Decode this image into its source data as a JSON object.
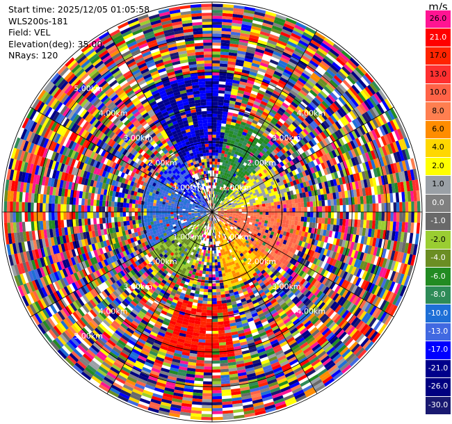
{
  "header": {
    "start_time": "Start time: 2025/12/05 01:05:58",
    "station": "WLS200s-181",
    "field": "Field: VEL",
    "elevation": "Elevation(deg): 35.00",
    "nrays": "NRays: 120"
  },
  "colorbar": {
    "unit": "m/s",
    "ticks": [
      "26.0",
      "21.0",
      "17.0",
      "13.0",
      "10.0",
      "8.0",
      "6.0",
      "4.0",
      "2.0",
      "1.0",
      "0.0",
      "-1.0",
      "-2.0",
      "-4.0",
      "-6.0",
      "-8.0",
      "-10.0",
      "-13.0",
      "-17.0",
      "-21.0",
      "-26.0",
      "-30.0"
    ],
    "colors": [
      "#ff1493",
      "#ff0000",
      "#ff2400",
      "#ff3030",
      "#ff6347",
      "#ff7f50",
      "#ff8c00",
      "#ffd700",
      "#ffff00",
      "#9aa0a6",
      "#808080",
      "#696969",
      "#9acd32",
      "#6b8e23",
      "#228b22",
      "#2e8b57",
      "#1e6fd6",
      "#4169e1",
      "#0000ff",
      "#00008b",
      "#000080",
      "#191970"
    ]
  },
  "chart_data": {
    "type": "heatmap",
    "projection": "polar PPI",
    "field": "VEL",
    "unit": "m/s",
    "nrays": 120,
    "ray_step_deg": 3,
    "max_range_km": 6.0,
    "range_ring_labels": [
      {
        "label": "1.00km",
        "azimuth_deg": 225
      },
      {
        "label": "1.00km",
        "azimuth_deg": 135
      },
      {
        "label": "1.00km",
        "azimuth_deg": 315
      },
      {
        "label": "1.00km",
        "azimuth_deg": 45
      },
      {
        "label": "2.00km",
        "azimuth_deg": 225
      },
      {
        "label": "2.00km",
        "azimuth_deg": 135
      },
      {
        "label": "2.00km",
        "azimuth_deg": 315
      },
      {
        "label": "2.00km",
        "azimuth_deg": 45
      },
      {
        "label": "3.00km",
        "azimuth_deg": 225
      },
      {
        "label": "3.00km",
        "azimuth_deg": 135
      },
      {
        "label": "3.00km",
        "azimuth_deg": 315
      },
      {
        "label": "3.00km",
        "azimuth_deg": 45
      },
      {
        "label": "4.00km",
        "azimuth_deg": 225
      },
      {
        "label": "4.00km",
        "azimuth_deg": 135
      },
      {
        "label": "4.00km",
        "azimuth_deg": 315
      },
      {
        "label": "4.00km",
        "azimuth_deg": 45
      },
      {
        "label": "5.00km",
        "azimuth_deg": 225
      },
      {
        "label": "5.00km",
        "azimuth_deg": 315
      }
    ],
    "velocity_sectors": [
      {
        "azimuth_from": 330,
        "azimuth_to": 10,
        "range_km": [
          1.6,
          4.0
        ],
        "velocity": -17.0
      },
      {
        "azimuth_from": 10,
        "azimuth_to": 45,
        "range_km": [
          0.2,
          2.6
        ],
        "velocity": -6.0
      },
      {
        "azimuth_from": 45,
        "azimuth_to": 80,
        "range_km": [
          0.2,
          2.2
        ],
        "velocity": 2.0
      },
      {
        "azimuth_from": 80,
        "azimuth_to": 130,
        "range_km": [
          0.2,
          2.6
        ],
        "velocity": 10.0
      },
      {
        "azimuth_from": 130,
        "azimuth_to": 170,
        "range_km": [
          0.3,
          2.2
        ],
        "velocity": 6.0
      },
      {
        "azimuth_from": 170,
        "azimuth_to": 200,
        "range_km": [
          2.6,
          4.2
        ],
        "velocity": 21.0
      },
      {
        "azimuth_from": 200,
        "azimuth_to": 240,
        "range_km": [
          0.2,
          2.0
        ],
        "velocity": -2.0
      },
      {
        "azimuth_from": 240,
        "azimuth_to": 300,
        "range_km": [
          0.2,
          2.0
        ],
        "velocity": -10.0
      },
      {
        "azimuth_from": 300,
        "azimuth_to": 330,
        "range_km": [
          0.2,
          1.8
        ],
        "velocity": -13.0
      }
    ],
    "outer_region": "noisy, speckled velocities across full color scale"
  }
}
